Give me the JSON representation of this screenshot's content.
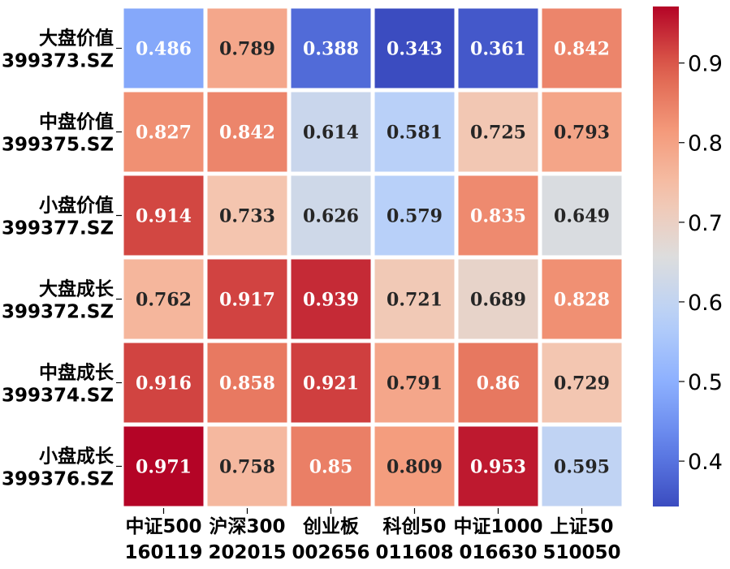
{
  "chart_data": {
    "type": "heatmap",
    "title": "",
    "xlabel": "",
    "ylabel": "",
    "rows": [
      {
        "name": "大盘价值",
        "code": "399373.SZ"
      },
      {
        "name": "中盘价值",
        "code": "399375.SZ"
      },
      {
        "name": "小盘价值",
        "code": "399377.SZ"
      },
      {
        "name": "大盘成长",
        "code": "399372.SZ"
      },
      {
        "name": "中盘成长",
        "code": "399374.SZ"
      },
      {
        "name": "小盘成长",
        "code": "399376.SZ"
      }
    ],
    "columns": [
      {
        "name": "中证500",
        "code": "160119"
      },
      {
        "name": "沪深300",
        "code": "202015"
      },
      {
        "name": "创业板",
        "code": "002656"
      },
      {
        "name": "科创50",
        "code": "011608"
      },
      {
        "name": "中证1000",
        "code": "016630"
      },
      {
        "name": "上证50",
        "code": "510050"
      }
    ],
    "values": [
      [
        "0.486",
        "0.789",
        "0.388",
        "0.343",
        "0.361",
        "0.842"
      ],
      [
        "0.827",
        "0.842",
        "0.614",
        "0.581",
        "0.725",
        "0.793"
      ],
      [
        "0.914",
        "0.733",
        "0.626",
        "0.579",
        "0.835",
        "0.649"
      ],
      [
        "0.762",
        "0.917",
        "0.939",
        "0.721",
        "0.689",
        "0.828"
      ],
      [
        "0.916",
        "0.858",
        "0.921",
        "0.791",
        "0.86",
        "0.729"
      ],
      [
        "0.971",
        "0.758",
        "0.85",
        "0.809",
        "0.953",
        "0.595"
      ]
    ],
    "colormap": "coolwarm",
    "color_range": [
      0.343,
      0.971
    ],
    "colorbar_ticks": [
      "0.4",
      "0.5",
      "0.6",
      "0.7",
      "0.8",
      "0.9"
    ],
    "grid_color": "#ffffff"
  }
}
